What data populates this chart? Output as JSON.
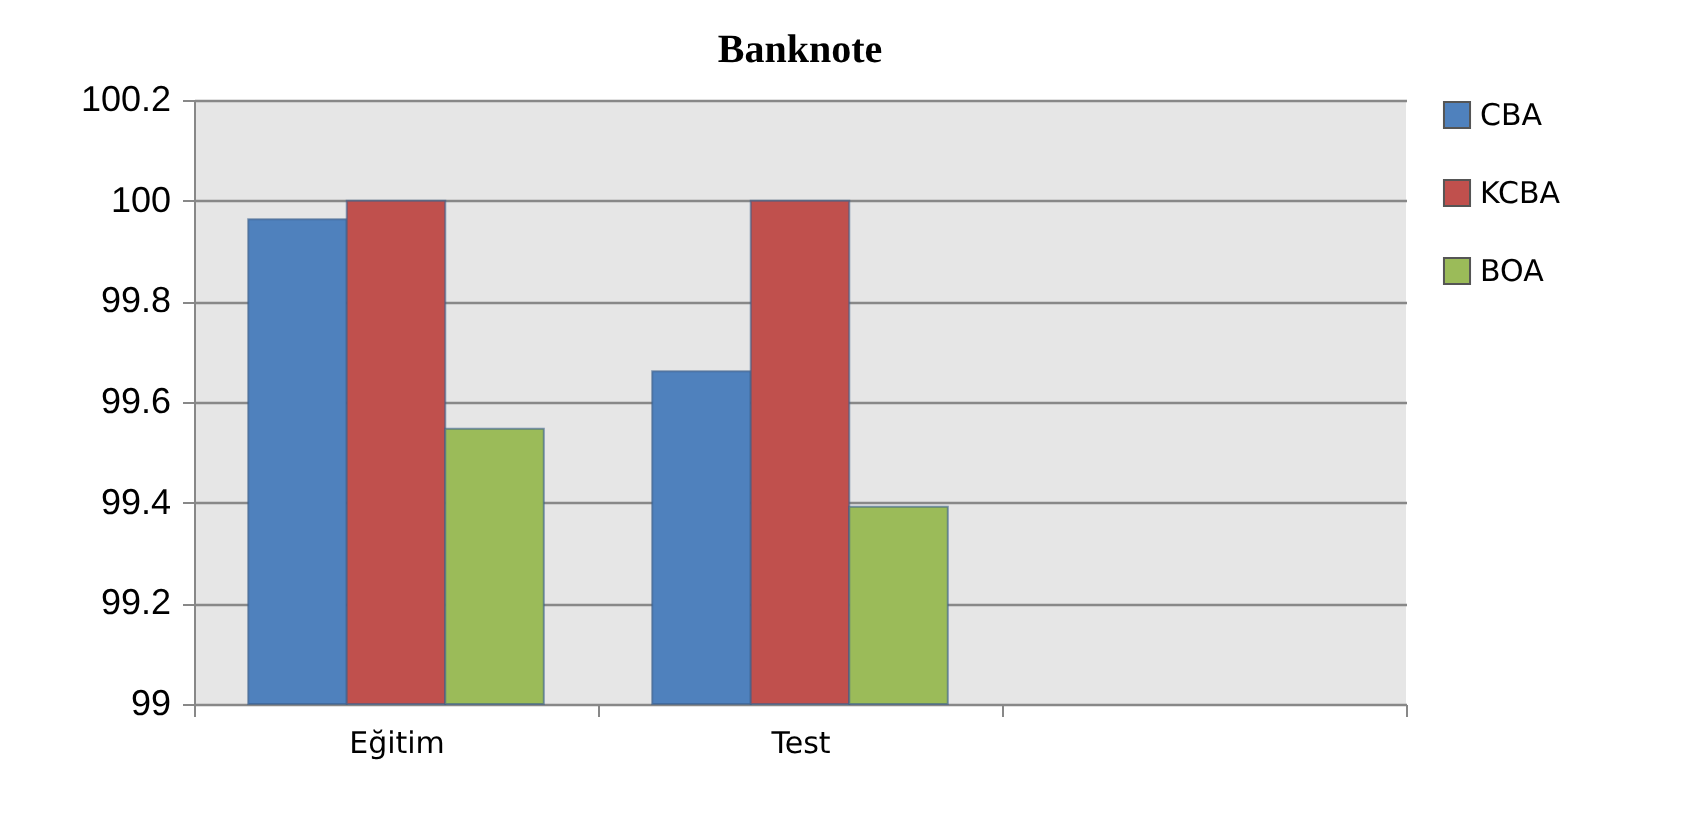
{
  "chart_data": {
    "type": "bar",
    "title": "Banknote",
    "categories": [
      "Eğitim",
      "Test",
      null
    ],
    "series": [
      {
        "name": "CBA",
        "color": "#4f81bd",
        "values": [
          99.963,
          99.661,
          null
        ]
      },
      {
        "name": "KCBA",
        "color": "#c0504d",
        "values": [
          100,
          100,
          null
        ]
      },
      {
        "name": "BOA",
        "color": "#9bbb59",
        "values": [
          99.547,
          99.392,
          null
        ]
      }
    ],
    "ylim": [
      99,
      100.2
    ],
    "yticks": [
      99,
      99.2,
      99.4,
      99.6,
      99.8,
      100,
      100.2
    ],
    "grid": "y",
    "legend": "right"
  }
}
